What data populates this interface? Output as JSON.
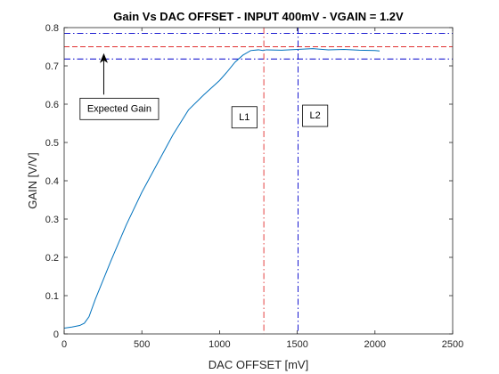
{
  "chart_data": {
    "type": "line",
    "title": "Gain Vs DAC OFFSET - INPUT 400mV - VGAIN = 1.2V",
    "xlabel": "DAC OFFSET [mV]",
    "ylabel": "GAIN [V/V]",
    "xlim": [
      0,
      2500
    ],
    "ylim": [
      0,
      0.8
    ],
    "xticks": [
      0,
      500,
      1000,
      1500,
      2000,
      2500
    ],
    "xtick_labels": [
      "0",
      "500",
      "1000",
      "1500",
      "2000",
      "2500"
    ],
    "yticks": [
      0,
      0.1,
      0.2,
      0.3,
      0.4,
      0.5,
      0.6,
      0.7,
      0.8
    ],
    "ytick_labels": [
      "0",
      "0.1",
      "0.2",
      "0.3",
      "0.4",
      "0.5",
      "0.6",
      "0.7",
      "0.8"
    ],
    "grid": false,
    "series": [
      {
        "color": "#0072BD",
        "x": [
          0,
          50,
          100,
          130,
          160,
          200,
          300,
          400,
          500,
          600,
          700,
          800,
          900,
          1000,
          1050,
          1100,
          1150,
          1200,
          1250,
          1280,
          1300,
          1400,
          1500,
          1600,
          1700,
          1800,
          1900,
          2000,
          2030
        ],
        "y": [
          0.015,
          0.018,
          0.022,
          0.028,
          0.045,
          0.09,
          0.19,
          0.285,
          0.37,
          0.445,
          0.52,
          0.585,
          0.625,
          0.662,
          0.685,
          0.71,
          0.728,
          0.74,
          0.742,
          0.74,
          0.742,
          0.741,
          0.743,
          0.745,
          0.742,
          0.743,
          0.741,
          0.74,
          0.739
        ]
      }
    ],
    "reference_lines": [
      {
        "orientation": "horizontal",
        "value": 0.785,
        "color": "#0000CC",
        "style": "dash-dot"
      },
      {
        "orientation": "horizontal",
        "value": 0.75,
        "color": "#E03030",
        "style": "dashed"
      },
      {
        "orientation": "horizontal",
        "value": 0.718,
        "color": "#0000CC",
        "style": "dash-dot"
      },
      {
        "orientation": "vertical",
        "value": 1285,
        "color": "#E03030",
        "style": "dash-dot"
      },
      {
        "orientation": "vertical",
        "value": 1505,
        "color": "#0000CC",
        "style": "dash-dot"
      }
    ],
    "annotations": [
      {
        "text": "Expected Gain",
        "x": 355,
        "y": 0.59,
        "arrow_from": [
          255,
          0.625
        ],
        "arrow_to": [
          255,
          0.733
        ]
      },
      {
        "text": "L1",
        "x": 1160,
        "y": 0.568
      },
      {
        "text": "L2",
        "x": 1615,
        "y": 0.572
      }
    ]
  }
}
